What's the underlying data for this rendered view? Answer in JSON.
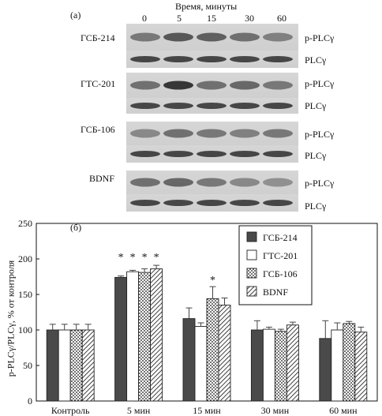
{
  "blot": {
    "panel_label": "(а)",
    "time_title": "Время, минуты",
    "time_points": [
      "0",
      "5",
      "15",
      "30",
      "60"
    ],
    "groups": [
      "ГСБ-214",
      "ГТС-201",
      "ГСБ-106",
      "BDNF"
    ],
    "row_labels": [
      "p-PLCγ",
      "PLCγ"
    ]
  },
  "chart_data": {
    "type": "bar",
    "panel_label": "(б)",
    "ylabel": "p-PLCγ/PLCγ, % от контроля",
    "ylim": [
      0,
      250
    ],
    "yticks": [
      0,
      50,
      100,
      150,
      200,
      250
    ],
    "categories": [
      "Контроль",
      "5 мин",
      "15 мин",
      "30 мин",
      "60 мин"
    ],
    "series": [
      {
        "name": "ГСБ-214",
        "values": [
          100,
          174,
          116,
          100,
          88
        ],
        "errors": [
          8,
          2,
          15,
          13,
          25
        ],
        "fill": "dark"
      },
      {
        "name": "ГТС-201",
        "values": [
          100,
          182,
          105,
          101,
          100
        ],
        "errors": [
          8,
          2,
          5,
          3,
          10
        ],
        "fill": "white"
      },
      {
        "name": "ГСБ-106",
        "values": [
          100,
          181,
          144,
          98,
          109
        ],
        "errors": [
          8,
          5,
          17,
          3,
          3
        ],
        "fill": "dotted"
      },
      {
        "name": "BDNF",
        "values": [
          100,
          186,
          135,
          107,
          97
        ],
        "errors": [
          8,
          5,
          10,
          4,
          7
        ],
        "fill": "hatched"
      }
    ],
    "significance": [
      {
        "category": "5 мин",
        "series": [
          "ГСБ-214",
          "ГТС-201",
          "ГСБ-106",
          "BDNF"
        ],
        "mark": "*"
      },
      {
        "category": "15 мин",
        "series": [
          "ГСБ-106"
        ],
        "mark": "*"
      }
    ],
    "legend_position": "top-right",
    "colors": {
      "dark": "#4a4a4a",
      "white": "#ffffff",
      "edge": "#222222"
    }
  }
}
